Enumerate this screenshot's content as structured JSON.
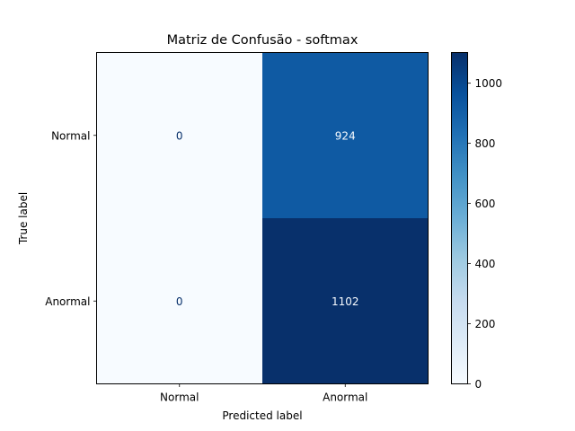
{
  "chart_data": {
    "type": "heatmap",
    "title": "Matriz de Confusão - softmax",
    "xlabel": "Predicted label",
    "ylabel": "True label",
    "x_categories": [
      "Normal",
      "Anormal"
    ],
    "y_categories": [
      "Normal",
      "Anormal"
    ],
    "matrix": [
      [
        0,
        924
      ],
      [
        0,
        1102
      ]
    ],
    "cell_labels": [
      [
        "0",
        "924"
      ],
      [
        "0",
        "1102"
      ]
    ],
    "colormap": "Blues",
    "color_range": [
      0,
      1102
    ],
    "colorbar_ticks": [
      0,
      200,
      400,
      600,
      800,
      1000
    ],
    "colorbar_tick_labels": [
      "0",
      "200",
      "400",
      "600",
      "800",
      "1000"
    ],
    "grid": false
  }
}
